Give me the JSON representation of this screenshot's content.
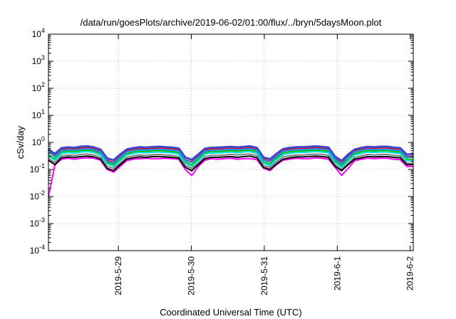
{
  "chart_data": {
    "type": "line",
    "title": "/data/run/goesPlots/archive/2019-06-02/01:00/flux/../bryn/5daysMoon.plot",
    "xlabel": "Coordinated Universal Time (UTC)",
    "ylabel": "cSv/day",
    "yscale": "log",
    "ylim": [
      0.0001,
      10000
    ],
    "y_ticks": [
      {
        "value": 0.0001,
        "base": "10",
        "exp": "-4"
      },
      {
        "value": 0.001,
        "base": "10",
        "exp": "-3"
      },
      {
        "value": 0.01,
        "base": "10",
        "exp": "-2"
      },
      {
        "value": 0.1,
        "base": "10",
        "exp": "-1"
      },
      {
        "value": 1,
        "base": "10",
        "exp": "0"
      },
      {
        "value": 10,
        "base": "10",
        "exp": "1"
      },
      {
        "value": 100,
        "base": "10",
        "exp": "2"
      },
      {
        "value": 1000,
        "base": "10",
        "exp": "3"
      },
      {
        "value": 10000,
        "base": "10",
        "exp": "4"
      }
    ],
    "xlim": [
      "2019-05-28T01:00",
      "2019-06-02T01:00"
    ],
    "x_ticks": [
      "2019-5-29",
      "2019-5-30",
      "2019-5-31",
      "2019-6-1",
      "2019-6-2"
    ],
    "x_tick_dates": [
      "2019-05-29",
      "2019-05-30",
      "2019-05-31",
      "2019-06-01",
      "2019-06-02"
    ],
    "grid": true,
    "legend": "none",
    "series": [
      {
        "color": "#ff00ff",
        "profile": [
          0.0,
          0.15,
          0.24,
          0.26,
          0.24,
          0.26,
          0.27,
          0.26,
          0.22,
          0.1,
          0.08,
          0.13,
          0.21,
          0.24,
          0.25,
          0.26,
          0.25,
          0.25,
          0.26,
          0.25,
          0.24,
          0.1,
          0.06,
          0.13,
          0.22,
          0.25,
          0.24,
          0.25,
          0.26,
          0.24,
          0.25,
          0.25,
          0.23,
          0.11,
          0.09,
          0.15,
          0.22,
          0.24,
          0.26,
          0.25,
          0.25,
          0.27,
          0.26,
          0.24,
          0.12,
          0.06,
          0.11,
          0.21,
          0.24,
          0.26,
          0.25,
          0.26,
          0.26,
          0.24,
          0.23,
          0.13,
          0.13
        ]
      },
      {
        "color": "#ff0000",
        "profile": [
          0.45,
          0.32,
          0.55,
          0.6,
          0.57,
          0.63,
          0.65,
          0.6,
          0.48,
          0.22,
          0.18,
          0.3,
          0.48,
          0.55,
          0.6,
          0.58,
          0.61,
          0.63,
          0.6,
          0.58,
          0.53,
          0.23,
          0.19,
          0.3,
          0.52,
          0.57,
          0.58,
          0.6,
          0.62,
          0.59,
          0.62,
          0.65,
          0.56,
          0.24,
          0.2,
          0.32,
          0.5,
          0.56,
          0.6,
          0.6,
          0.62,
          0.65,
          0.62,
          0.58,
          0.26,
          0.17,
          0.3,
          0.48,
          0.56,
          0.62,
          0.6,
          0.63,
          0.63,
          0.58,
          0.55,
          0.3,
          0.3
        ]
      },
      {
        "color": "#00c000",
        "profile": [
          0.36,
          0.25,
          0.44,
          0.48,
          0.46,
          0.5,
          0.52,
          0.48,
          0.39,
          0.18,
          0.15,
          0.24,
          0.38,
          0.44,
          0.48,
          0.46,
          0.49,
          0.5,
          0.48,
          0.46,
          0.42,
          0.19,
          0.15,
          0.24,
          0.42,
          0.46,
          0.46,
          0.48,
          0.5,
          0.47,
          0.5,
          0.52,
          0.45,
          0.19,
          0.16,
          0.26,
          0.4,
          0.45,
          0.48,
          0.48,
          0.5,
          0.52,
          0.5,
          0.46,
          0.21,
          0.14,
          0.24,
          0.38,
          0.45,
          0.5,
          0.48,
          0.5,
          0.5,
          0.46,
          0.44,
          0.24,
          0.24
        ]
      },
      {
        "color": "#00e0e0",
        "profile": [
          0.32,
          0.22,
          0.39,
          0.42,
          0.4,
          0.44,
          0.46,
          0.42,
          0.34,
          0.16,
          0.13,
          0.21,
          0.34,
          0.39,
          0.42,
          0.41,
          0.43,
          0.44,
          0.42,
          0.41,
          0.37,
          0.17,
          0.13,
          0.21,
          0.37,
          0.4,
          0.41,
          0.42,
          0.44,
          0.41,
          0.44,
          0.46,
          0.39,
          0.17,
          0.14,
          0.23,
          0.35,
          0.39,
          0.42,
          0.42,
          0.44,
          0.46,
          0.44,
          0.41,
          0.18,
          0.12,
          0.21,
          0.34,
          0.39,
          0.44,
          0.42,
          0.44,
          0.44,
          0.41,
          0.39,
          0.21,
          0.21
        ]
      },
      {
        "color": "#7f7f7f",
        "profile": [
          0.26,
          0.18,
          0.32,
          0.34,
          0.33,
          0.36,
          0.37,
          0.34,
          0.28,
          0.13,
          0.11,
          0.17,
          0.28,
          0.32,
          0.34,
          0.33,
          0.35,
          0.36,
          0.34,
          0.33,
          0.3,
          0.14,
          0.11,
          0.17,
          0.3,
          0.33,
          0.33,
          0.34,
          0.36,
          0.34,
          0.36,
          0.37,
          0.32,
          0.14,
          0.12,
          0.19,
          0.29,
          0.32,
          0.34,
          0.34,
          0.36,
          0.37,
          0.36,
          0.33,
          0.15,
          0.1,
          0.17,
          0.28,
          0.32,
          0.36,
          0.34,
          0.36,
          0.36,
          0.33,
          0.32,
          0.17,
          0.17
        ]
      },
      {
        "color": "#000000",
        "profile": [
          0.22,
          0.15,
          0.27,
          0.29,
          0.28,
          0.3,
          0.31,
          0.29,
          0.24,
          0.11,
          0.09,
          0.15,
          0.24,
          0.27,
          0.29,
          0.28,
          0.3,
          0.3,
          0.29,
          0.28,
          0.26,
          0.12,
          0.09,
          0.15,
          0.25,
          0.28,
          0.28,
          0.29,
          0.3,
          0.28,
          0.3,
          0.31,
          0.27,
          0.12,
          0.1,
          0.16,
          0.24,
          0.27,
          0.29,
          0.29,
          0.3,
          0.31,
          0.3,
          0.28,
          0.13,
          0.09,
          0.15,
          0.24,
          0.27,
          0.3,
          0.29,
          0.3,
          0.3,
          0.28,
          0.27,
          0.15,
          0.15
        ]
      },
      {
        "color": "#3f48cc",
        "profile": [
          0.55,
          0.38,
          0.62,
          0.66,
          0.64,
          0.7,
          0.72,
          0.66,
          0.55,
          0.26,
          0.22,
          0.36,
          0.55,
          0.62,
          0.67,
          0.65,
          0.68,
          0.7,
          0.67,
          0.65,
          0.6,
          0.28,
          0.23,
          0.36,
          0.59,
          0.64,
          0.65,
          0.67,
          0.69,
          0.66,
          0.69,
          0.72,
          0.63,
          0.28,
          0.24,
          0.38,
          0.57,
          0.63,
          0.67,
          0.67,
          0.69,
          0.72,
          0.69,
          0.65,
          0.3,
          0.21,
          0.36,
          0.55,
          0.63,
          0.69,
          0.67,
          0.7,
          0.7,
          0.65,
          0.62,
          0.36,
          0.36
        ]
      },
      {
        "color": "#1e90ff",
        "profile": [
          0.45,
          0.3,
          0.5,
          0.53,
          0.52,
          0.56,
          0.58,
          0.53,
          0.44,
          0.2,
          0.17,
          0.28,
          0.44,
          0.5,
          0.54,
          0.52,
          0.55,
          0.56,
          0.54,
          0.52,
          0.48,
          0.22,
          0.18,
          0.28,
          0.47,
          0.51,
          0.52,
          0.54,
          0.56,
          0.53,
          0.56,
          0.58,
          0.51,
          0.22,
          0.19,
          0.3,
          0.46,
          0.51,
          0.54,
          0.54,
          0.56,
          0.58,
          0.56,
          0.52,
          0.24,
          0.16,
          0.28,
          0.44,
          0.51,
          0.56,
          0.54,
          0.56,
          0.56,
          0.52,
          0.5,
          0.28,
          0.28
        ]
      }
    ]
  }
}
